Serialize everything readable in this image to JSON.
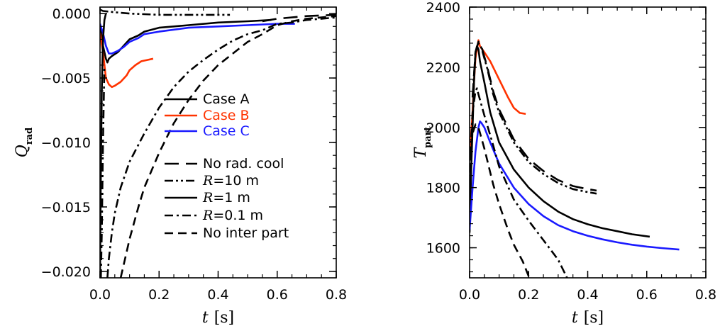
{
  "chart_data": [
    {
      "type": "line",
      "xlabel": "t",
      "xunit": "[s]",
      "ylabel": "Q",
      "ylabel_sub": "rad",
      "xlim": [
        0,
        0.8
      ],
      "ylim": [
        -0.0205,
        0.0005
      ],
      "xticks": [
        "0.0",
        "0.2",
        "0.4",
        "0.6",
        "0.8"
      ],
      "yticks": [
        "0.000",
        "−0.005",
        "−0.010",
        "−0.015",
        "−0.020"
      ],
      "ytick_values": [
        0,
        -0.005,
        -0.01,
        -0.015,
        -0.02
      ],
      "legend": {
        "placement": "center-right",
        "entries": [
          {
            "label": "Case A",
            "color": "#000000",
            "dash": "solid"
          },
          {
            "label": "Case B",
            "color": "#ff3300",
            "dash": "solid"
          },
          {
            "label": "Case C",
            "color": "#1a1aff",
            "dash": "solid"
          },
          {
            "label": "No rad. cool",
            "color": "#000000",
            "dash": "longdash"
          },
          {
            "label": "R=10 m",
            "italic_prefix": "R",
            "rest": "=10 m",
            "color": "#000000",
            "dash": "dashdotdot"
          },
          {
            "label": "R=1 m",
            "italic_prefix": "R",
            "rest": "=1 m",
            "color": "#000000",
            "dash": "solid"
          },
          {
            "label": "R=0.1 m",
            "italic_prefix": "R",
            "rest": "=0.1 m",
            "color": "#000000",
            "dash": "dashdot"
          },
          {
            "label": "No inter part",
            "color": "#000000",
            "dash": "dash"
          }
        ]
      },
      "series": [
        {
          "color": "#000000",
          "dash": "solid",
          "points": [
            [
              0,
              -0.0008
            ],
            [
              0.01,
              -0.0025
            ],
            [
              0.02,
              -0.0035
            ],
            [
              0.025,
              -0.0038
            ],
            [
              0.03,
              -0.0035
            ],
            [
              0.04,
              -0.0033
            ],
            [
              0.06,
              -0.003
            ],
            [
              0.08,
              -0.0025
            ],
            [
              0.1,
              -0.002
            ],
            [
              0.13,
              -0.0017
            ],
            [
              0.15,
              -0.0014
            ],
            [
              0.2,
              -0.0011
            ],
            [
              0.25,
              -0.001
            ],
            [
              0.3,
              -0.0009
            ],
            [
              0.4,
              -0.0007
            ],
            [
              0.5,
              -0.0006
            ],
            [
              0.58,
              -0.0005
            ]
          ]
        },
        {
          "color": "#ff3300",
          "dash": "solid",
          "points": [
            [
              0,
              -0.0015
            ],
            [
              0.01,
              -0.003
            ],
            [
              0.02,
              -0.005
            ],
            [
              0.03,
              -0.0055
            ],
            [
              0.04,
              -0.0057
            ],
            [
              0.05,
              -0.0056
            ],
            [
              0.07,
              -0.0053
            ],
            [
              0.09,
              -0.0048
            ],
            [
              0.1,
              -0.0044
            ],
            [
              0.12,
              -0.004
            ],
            [
              0.14,
              -0.0037
            ],
            [
              0.16,
              -0.0036
            ],
            [
              0.18,
              -0.0035
            ]
          ]
        },
        {
          "color": "#1a1aff",
          "dash": "solid",
          "points": [
            [
              0,
              -0.0008
            ],
            [
              0.01,
              -0.0015
            ],
            [
              0.02,
              -0.0025
            ],
            [
              0.03,
              -0.0031
            ],
            [
              0.04,
              -0.0031
            ],
            [
              0.06,
              -0.0029
            ],
            [
              0.08,
              -0.0026
            ],
            [
              0.1,
              -0.0022
            ],
            [
              0.13,
              -0.0019
            ],
            [
              0.15,
              -0.0016
            ],
            [
              0.2,
              -0.0014
            ],
            [
              0.3,
              -0.0011
            ],
            [
              0.4,
              -0.001
            ],
            [
              0.5,
              -0.0009
            ],
            [
              0.6,
              -0.0008
            ],
            [
              0.66,
              -0.0008
            ]
          ]
        },
        {
          "color": "#000000",
          "dash": "dashdotdot",
          "points": [
            [
              0,
              0.0003
            ],
            [
              0.01,
              0.0002
            ],
            [
              0.05,
              0.0001
            ],
            [
              0.1,
              0
            ],
            [
              0.2,
              -0.0001
            ],
            [
              0.3,
              -0.0001
            ],
            [
              0.4,
              -0.0001
            ],
            [
              0.44,
              -0.0001
            ]
          ]
        },
        {
          "color": "#000000",
          "dash": "dashdot",
          "points": [
            [
              0.025,
              -0.0205
            ],
            [
              0.03,
              -0.019
            ],
            [
              0.04,
              -0.017
            ],
            [
              0.05,
              -0.0155
            ],
            [
              0.07,
              -0.0135
            ],
            [
              0.1,
              -0.0115
            ],
            [
              0.15,
              -0.0093
            ],
            [
              0.2,
              -0.0073
            ],
            [
              0.25,
              -0.0057
            ],
            [
              0.3,
              -0.0045
            ],
            [
              0.35,
              -0.0036
            ],
            [
              0.4,
              -0.0028
            ],
            [
              0.45,
              -0.0021
            ],
            [
              0.5,
              -0.0016
            ],
            [
              0.55,
              -0.0013
            ],
            [
              0.6,
              -0.0008
            ],
            [
              0.65,
              -0.0007
            ],
            [
              0.7,
              -0.0005
            ],
            [
              0.75,
              -0.0004
            ],
            [
              0.8,
              -0.0003
            ]
          ]
        },
        {
          "color": "#000000",
          "dash": "dash",
          "points": [
            [
              0.07,
              -0.0205
            ],
            [
              0.09,
              -0.0185
            ],
            [
              0.1,
              -0.0175
            ],
            [
              0.13,
              -0.015
            ],
            [
              0.15,
              -0.0135
            ],
            [
              0.2,
              -0.0108
            ],
            [
              0.25,
              -0.0085
            ],
            [
              0.3,
              -0.0067
            ],
            [
              0.35,
              -0.0052
            ],
            [
              0.4,
              -0.004
            ],
            [
              0.45,
              -0.0031
            ],
            [
              0.5,
              -0.0022
            ],
            [
              0.55,
              -0.0016
            ],
            [
              0.6,
              -0.0009
            ],
            [
              0.65,
              -0.0006
            ],
            [
              0.7,
              -0.0004
            ],
            [
              0.8,
              -0.0002
            ]
          ]
        },
        {
          "color": "#000000",
          "dash": "longdash",
          "points": [
            [
              0.55,
              -0.0006
            ],
            [
              0.6,
              -0.0004
            ],
            [
              0.7,
              -0.0002
            ],
            [
              0.8,
              -0.0001
            ]
          ]
        },
        {
          "color": "#000000",
          "dash": "solid",
          "points": [
            [
              0,
              -0.0205
            ],
            [
              0.003,
              -0.012
            ],
            [
              0.006,
              -0.006
            ],
            [
              0.01,
              -0.002
            ],
            [
              0.015,
              -0.0005
            ],
            [
              0.02,
              0
            ]
          ]
        },
        {
          "color": "#000000",
          "dash": "dashdot",
          "points": [
            [
              0.003,
              -0.0205
            ],
            [
              0.006,
              -0.017
            ],
            [
              0.01,
              -0.01
            ],
            [
              0.015,
              -0.004
            ]
          ]
        }
      ]
    },
    {
      "type": "line",
      "xlabel": "t",
      "xunit": "[s]",
      "ylabel": "T",
      "ylabel_sub": "part",
      "xlim": [
        0,
        0.8
      ],
      "ylim": [
        1500,
        2400
      ],
      "xticks": [
        "0.0",
        "0.2",
        "0.4",
        "0.6",
        "0.8"
      ],
      "yticks": [
        "2400",
        "2200",
        "2000",
        "1800",
        "1600"
      ],
      "ytick_values": [
        2400,
        2200,
        2000,
        1800,
        1600
      ],
      "series": [
        {
          "color": "#ff3300",
          "dash": "solid",
          "points": [
            [
              0,
              1900
            ],
            [
              0.01,
              2050
            ],
            [
              0.015,
              2150
            ],
            [
              0.02,
              2230
            ],
            [
              0.025,
              2260
            ],
            [
              0.03,
              2290
            ],
            [
              0.035,
              2270
            ],
            [
              0.05,
              2250
            ],
            [
              0.07,
              2220
            ],
            [
              0.1,
              2160
            ],
            [
              0.13,
              2100
            ],
            [
              0.15,
              2065
            ],
            [
              0.17,
              2048
            ],
            [
              0.19,
              2045
            ]
          ]
        },
        {
          "color": "#000000",
          "dash": "solid",
          "points": [
            [
              0,
              1650
            ],
            [
              0.005,
              1850
            ],
            [
              0.01,
              2000
            ],
            [
              0.015,
              2150
            ],
            [
              0.02,
              2250
            ],
            [
              0.025,
              2270
            ],
            [
              0.03,
              2260
            ],
            [
              0.035,
              2220
            ],
            [
              0.05,
              2150
            ],
            [
              0.07,
              2050
            ],
            [
              0.1,
              1950
            ],
            [
              0.15,
              1860
            ],
            [
              0.2,
              1800
            ],
            [
              0.25,
              1755
            ],
            [
              0.3,
              1720
            ],
            [
              0.35,
              1695
            ],
            [
              0.4,
              1678
            ],
            [
              0.45,
              1665
            ],
            [
              0.5,
              1655
            ],
            [
              0.55,
              1645
            ],
            [
              0.61,
              1637
            ]
          ]
        },
        {
          "color": "#1a1aff",
          "dash": "solid",
          "points": [
            [
              0,
              1660
            ],
            [
              0.01,
              1800
            ],
            [
              0.02,
              1920
            ],
            [
              0.03,
              2000
            ],
            [
              0.035,
              2020
            ],
            [
              0.04,
              2015
            ],
            [
              0.05,
              2000
            ],
            [
              0.07,
              1950
            ],
            [
              0.1,
              1880
            ],
            [
              0.15,
              1800
            ],
            [
              0.2,
              1745
            ],
            [
              0.25,
              1705
            ],
            [
              0.3,
              1675
            ],
            [
              0.35,
              1655
            ],
            [
              0.4,
              1640
            ],
            [
              0.45,
              1628
            ],
            [
              0.5,
              1618
            ],
            [
              0.55,
              1610
            ],
            [
              0.6,
              1604
            ],
            [
              0.65,
              1599
            ],
            [
              0.71,
              1594
            ]
          ]
        },
        {
          "color": "#000000",
          "dash": "longdash",
          "points": [
            [
              0.01,
              2100
            ],
            [
              0.02,
              2250
            ],
            [
              0.03,
              2285
            ],
            [
              0.04,
              2270
            ],
            [
              0.06,
              2200
            ],
            [
              0.08,
              2120
            ],
            [
              0.1,
              2060
            ],
            [
              0.13,
              2000
            ],
            [
              0.15,
              1960
            ],
            [
              0.2,
              1895
            ],
            [
              0.25,
              1855
            ],
            [
              0.3,
              1825
            ],
            [
              0.35,
              1805
            ],
            [
              0.4,
              1795
            ],
            [
              0.43,
              1790
            ]
          ]
        },
        {
          "color": "#000000",
          "dash": "dashdotdot",
          "points": [
            [
              0.01,
              2100
            ],
            [
              0.02,
              2250
            ],
            [
              0.03,
              2280
            ],
            [
              0.04,
              2265
            ],
            [
              0.06,
              2195
            ],
            [
              0.08,
              2110
            ],
            [
              0.1,
              2050
            ],
            [
              0.13,
              1990
            ],
            [
              0.15,
              1950
            ],
            [
              0.2,
              1885
            ],
            [
              0.25,
              1845
            ],
            [
              0.3,
              1815
            ],
            [
              0.35,
              1795
            ],
            [
              0.4,
              1785
            ],
            [
              0.43,
              1780
            ]
          ]
        },
        {
          "color": "#000000",
          "dash": "dashdot",
          "points": [
            [
              0,
              1850
            ],
            [
              0.01,
              2050
            ],
            [
              0.02,
              2120
            ],
            [
              0.025,
              2130
            ],
            [
              0.03,
              2110
            ],
            [
              0.05,
              2040
            ],
            [
              0.08,
              1940
            ],
            [
              0.1,
              1870
            ],
            [
              0.15,
              1760
            ],
            [
              0.2,
              1690
            ],
            [
              0.25,
              1625
            ],
            [
              0.3,
              1560
            ],
            [
              0.33,
              1500
            ]
          ]
        },
        {
          "color": "#000000",
          "dash": "dash",
          "points": [
            [
              0,
              1850
            ],
            [
              0.01,
              1980
            ],
            [
              0.02,
              2010
            ],
            [
              0.03,
              2000
            ],
            [
              0.05,
              1930
            ],
            [
              0.08,
              1810
            ],
            [
              0.1,
              1745
            ],
            [
              0.13,
              1660
            ],
            [
              0.15,
              1610
            ],
            [
              0.18,
              1555
            ],
            [
              0.2,
              1505
            ]
          ]
        }
      ]
    }
  ]
}
